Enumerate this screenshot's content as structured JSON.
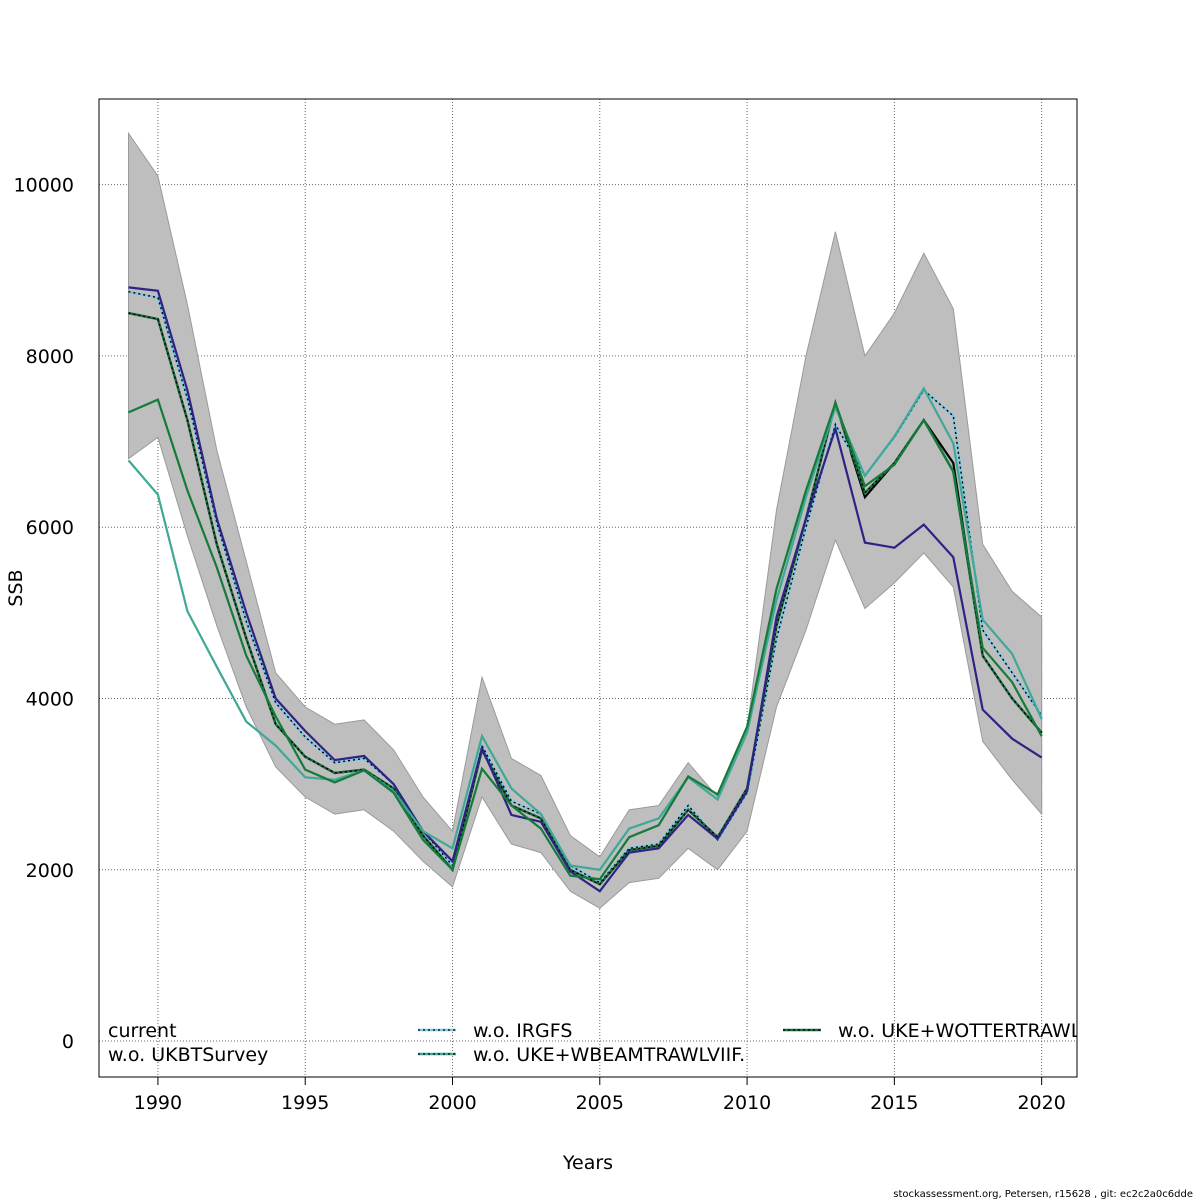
{
  "chart_data": {
    "type": "line",
    "title": "",
    "xlabel": "Years",
    "ylabel": "SSB",
    "xlim": [
      1988,
      2021.2
    ],
    "ylim": [
      -420,
      11000
    ],
    "xticks": [
      1990,
      1995,
      2000,
      2005,
      2010,
      2015,
      2020
    ],
    "yticks": [
      0,
      2000,
      4000,
      6000,
      8000,
      10000
    ],
    "grid": true,
    "legend_position": "bottom",
    "x": [
      1989,
      1990,
      1991,
      1992,
      1993,
      1994,
      1995,
      1996,
      1997,
      1998,
      1999,
      2000,
      2001,
      2002,
      2003,
      2004,
      2005,
      2006,
      2007,
      2008,
      2009,
      2010,
      2011,
      2012,
      2013,
      2014,
      2015,
      2016,
      2017,
      2018,
      2019,
      2020
    ],
    "confidence_band": {
      "upper": [
        10600,
        10100,
        8600,
        6900,
        5600,
        4300,
        3900,
        3700,
        3750,
        3400,
        2850,
        2450,
        4250,
        3300,
        3100,
        2400,
        2150,
        2700,
        2750,
        3250,
        2850,
        3650,
        6200,
        8000,
        9450,
        8000,
        8500,
        9200,
        8550,
        5800,
        5250,
        4950
      ],
      "lower": [
        6800,
        7050,
        5900,
        4850,
        3900,
        3200,
        2850,
        2650,
        2700,
        2450,
        2100,
        1800,
        2850,
        2300,
        2200,
        1750,
        1550,
        1850,
        1900,
        2250,
        2000,
        2450,
        3900,
        4800,
        5850,
        5050,
        5350,
        5700,
        5300,
        3500,
        3050,
        2650
      ]
    },
    "series": [
      {
        "name": "current",
        "color": "#000000",
        "dashed": false,
        "values": [
          8500,
          8430,
          7250,
          5800,
          4700,
          3700,
          3320,
          3130,
          3170,
          2950,
          2400,
          2000,
          3400,
          2750,
          2600,
          2000,
          1830,
          2230,
          2280,
          2700,
          2380,
          2950,
          4850,
          6100,
          7450,
          6350,
          6750,
          7250,
          6750,
          4500,
          4000,
          3600
        ]
      },
      {
        "name": "w.o. IRGFS",
        "color": "#7cc6e6",
        "dashed": true,
        "values": [
          8750,
          8680,
          7500,
          6050,
          4900,
          3950,
          3550,
          3250,
          3300,
          3000,
          2450,
          2050,
          3450,
          2800,
          2650,
          2050,
          1850,
          2250,
          2300,
          2750,
          2350,
          2900,
          4700,
          6000,
          7200,
          6600,
          7050,
          7600,
          7300,
          4800,
          4300,
          3800
        ]
      },
      {
        "name": "w.o. UKE+WOTTERTRAWL",
        "color": "#1a6b3c",
        "dashed": true,
        "values": [
          8500,
          8430,
          7250,
          5800,
          4700,
          3700,
          3320,
          3130,
          3170,
          2950,
          2400,
          2000,
          3400,
          2750,
          2600,
          2000,
          1830,
          2230,
          2280,
          2700,
          2380,
          2950,
          4850,
          6100,
          7450,
          6400,
          6750,
          7250,
          6650,
          4500,
          4000,
          3600
        ]
      },
      {
        "name": "w.o. UKBTSurvey",
        "color": "#2e2384",
        "dashed": false,
        "values": [
          8800,
          8760,
          7600,
          6100,
          5000,
          4000,
          3620,
          3280,
          3330,
          3000,
          2450,
          2100,
          3420,
          2640,
          2560,
          1980,
          1750,
          2200,
          2250,
          2640,
          2360,
          2920,
          4950,
          6100,
          7150,
          5820,
          5760,
          6030,
          5650,
          3870,
          3530,
          3310
        ]
      },
      {
        "name": "w.o. UKE+WBEAMTRAWLVIIF.",
        "color": "#3fa896",
        "dashed": false,
        "values": [
          6780,
          6380,
          5020,
          4370,
          3730,
          3450,
          3080,
          3050,
          3160,
          2920,
          2450,
          2250,
          3560,
          2950,
          2650,
          2050,
          2000,
          2480,
          2600,
          3080,
          2820,
          3600,
          5150,
          6350,
          7400,
          6600,
          7060,
          7620,
          6980,
          4920,
          4520,
          3760
        ]
      },
      {
        "name": "",
        "color": "#157a3a",
        "dashed": false,
        "values": [
          7340,
          7490,
          6430,
          5530,
          4500,
          3790,
          3170,
          3020,
          3160,
          2900,
          2350,
          2000,
          3180,
          2750,
          2480,
          1930,
          1890,
          2380,
          2520,
          3090,
          2880,
          3670,
          5280,
          6430,
          7450,
          6480,
          6730,
          7250,
          6650,
          4590,
          4190,
          3560
        ]
      }
    ]
  },
  "legend": [
    {
      "label": "current",
      "show_line": false
    },
    {
      "label": "w.o. UKBTSurvey",
      "show_line": false
    },
    {
      "label": "w.o. IRGFS",
      "show_line": true,
      "color": "#7cc6e6"
    },
    {
      "label": "w.o. UKE+WBEAMTRAWLVIIF.",
      "show_line": true,
      "color": "#3fa896"
    },
    {
      "label": "w.o. UKE+WOTTERTRAWL",
      "show_line": true,
      "color": "#1a6b3c"
    }
  ],
  "footer": "stockassessment.org, Petersen, r15628 , git: ec2c2a0c6dde"
}
